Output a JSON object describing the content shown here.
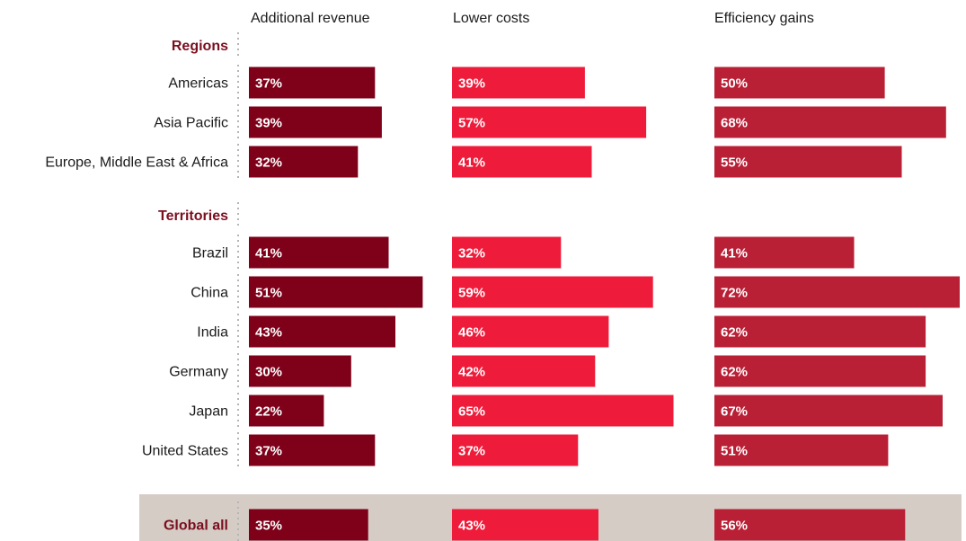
{
  "chart_data": {
    "type": "bar",
    "orientation": "horizontal",
    "columns": [
      {
        "name": "Additional revenue",
        "color": "#7e0019"
      },
      {
        "name": "Lower costs",
        "color": "#ee1c3a"
      },
      {
        "name": "Efficiency gains",
        "color": "#b92036"
      }
    ],
    "value_max": 72,
    "groups": [
      {
        "label": "Regions",
        "rows": [
          {
            "label": "Americas",
            "values": [
              37,
              39,
              50
            ]
          },
          {
            "label": "Asia Pacific",
            "values": [
              39,
              57,
              68
            ]
          },
          {
            "label": "Europe, Middle East & Africa",
            "values": [
              32,
              41,
              55
            ]
          }
        ]
      },
      {
        "label": "Territories",
        "rows": [
          {
            "label": "Brazil",
            "values": [
              41,
              32,
              41
            ]
          },
          {
            "label": "China",
            "values": [
              51,
              59,
              72
            ]
          },
          {
            "label": "India",
            "values": [
              43,
              46,
              62
            ]
          },
          {
            "label": "Germany",
            "values": [
              30,
              42,
              62
            ]
          },
          {
            "label": "Japan",
            "values": [
              22,
              65,
              67
            ]
          },
          {
            "label": "United States",
            "values": [
              37,
              37,
              51
            ]
          }
        ]
      }
    ],
    "global": {
      "label": "Global all",
      "values": [
        35,
        43,
        56
      ],
      "background": "#d6ccc6"
    },
    "value_suffix": "%"
  }
}
